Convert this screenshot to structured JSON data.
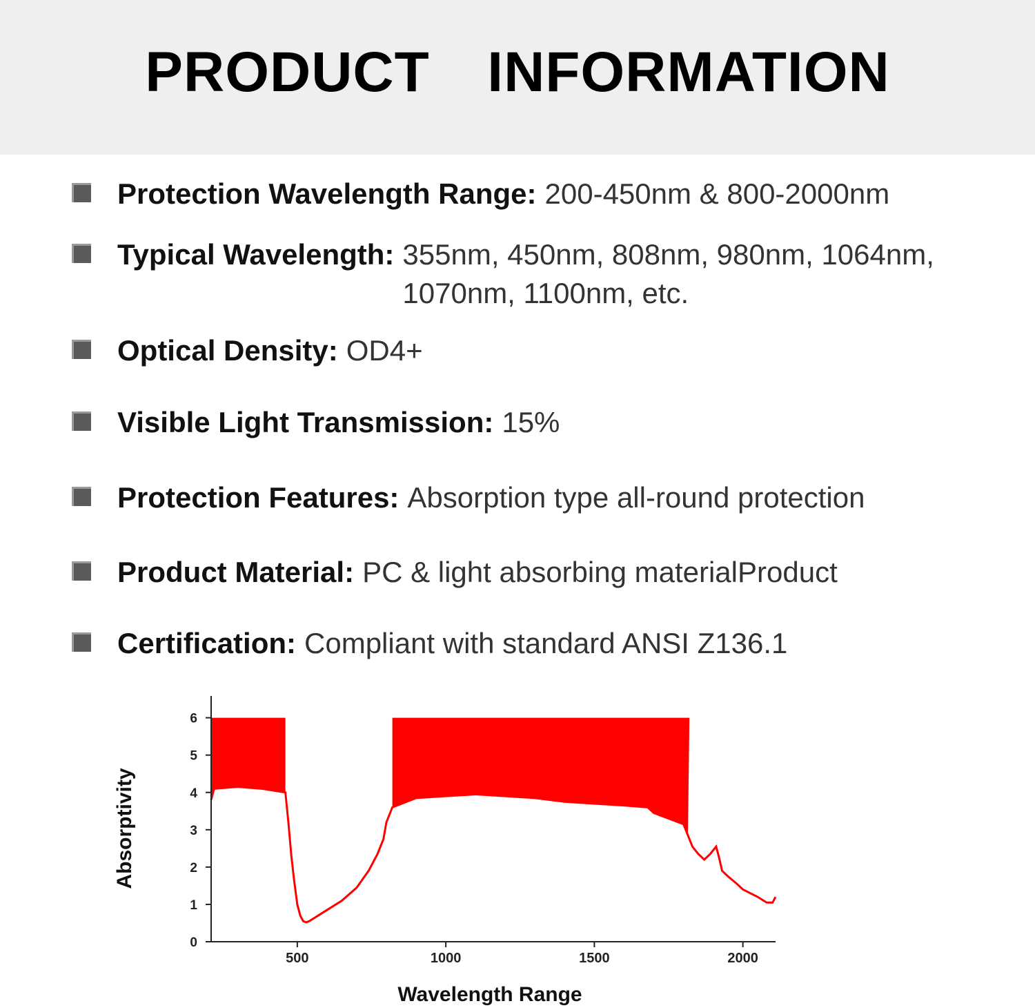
{
  "header": {
    "title": "PRODUCT  INFORMATION"
  },
  "specs": [
    {
      "label": "Protection Wavelength Range:",
      "value": "200-450nm & 800-2000nm"
    },
    {
      "label": "Typical Wavelength:",
      "value": "355nm, 450nm, 808nm, 980nm, 1064nm, 1070nm, 1100nm, etc."
    },
    {
      "label": "Optical Density:",
      "value": "OD4+"
    },
    {
      "label": "Visible Light Transmission:",
      "value": "15%"
    },
    {
      "label": "Protection Features:",
      "value": "Absorption type all-round protection"
    },
    {
      "label": "Product Material:",
      "value": "PC & light absorbing materialProduct"
    },
    {
      "label": "Certification:",
      "value": "Compliant with standard ANSI Z136.1"
    }
  ],
  "chart_data": {
    "type": "area",
    "title": "",
    "xlabel": "Wavelength Range",
    "ylabel": "Absorptivity",
    "xlim": [
      210,
      2110
    ],
    "ylim": [
      0,
      6.4
    ],
    "xticks": [
      500,
      1000,
      1500,
      2000
    ],
    "yticks": [
      0,
      1,
      2,
      3,
      4,
      5,
      6
    ],
    "color": "#ff0000",
    "grid": false,
    "series": [
      {
        "name": "",
        "x": [
          210,
          220,
          300,
          380,
          460,
          470,
          480,
          490,
          500,
          510,
          520,
          530,
          540,
          560,
          600,
          650,
          700,
          740,
          770,
          790,
          800,
          820,
          900,
          1000,
          1100,
          1200,
          1300,
          1400,
          1500,
          1600,
          1680,
          1700,
          1750,
          1800,
          1815,
          1830,
          1850,
          1870,
          1890,
          1910,
          1920,
          1930,
          1950,
          1980,
          2000,
          2050,
          2080,
          2100,
          2110
        ],
        "y": [
          3.8,
          4.1,
          4.15,
          4.1,
          4.0,
          3.2,
          2.3,
          1.6,
          1.0,
          0.7,
          0.55,
          0.52,
          0.55,
          0.65,
          0.85,
          1.1,
          1.45,
          1.9,
          2.35,
          2.75,
          3.2,
          3.6,
          3.85,
          3.9,
          3.95,
          3.9,
          3.85,
          3.75,
          3.7,
          3.65,
          3.6,
          3.45,
          3.3,
          3.15,
          2.85,
          2.55,
          2.35,
          2.2,
          2.35,
          2.55,
          2.25,
          1.9,
          1.75,
          1.55,
          1.4,
          1.2,
          1.05,
          1.05,
          1.2
        ]
      }
    ],
    "saturation_ranges": [
      [
        210,
        460
      ],
      [
        820,
        1820
      ]
    ],
    "saturation_value": 6
  }
}
